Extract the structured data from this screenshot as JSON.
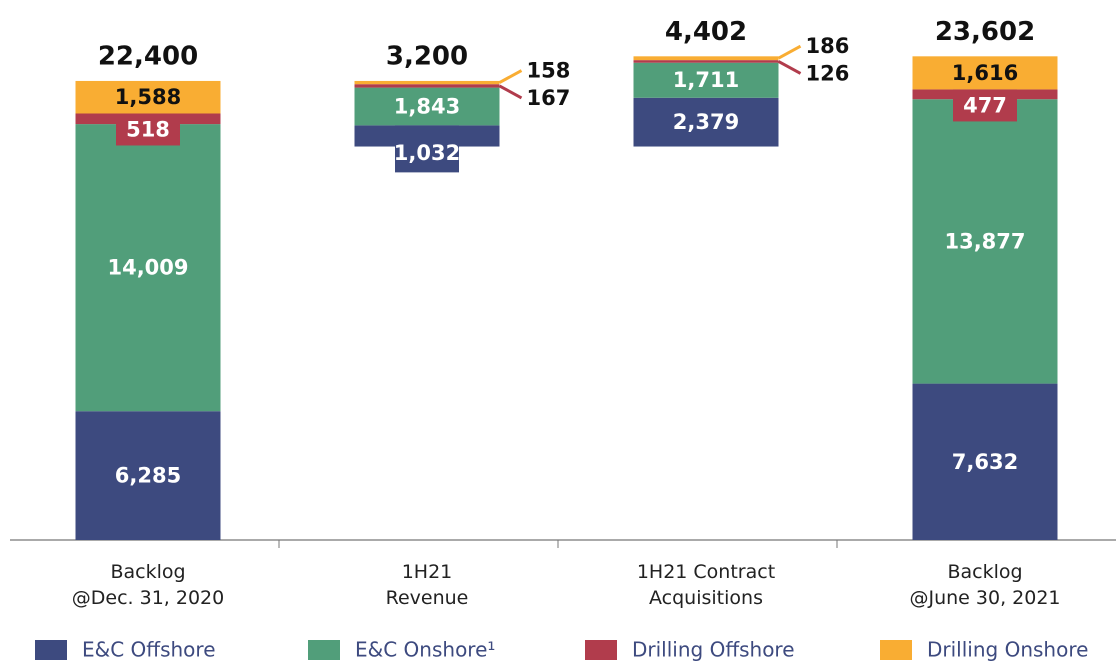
{
  "chart_data": {
    "type": "waterfall",
    "categories": [
      [
        "Backlog",
        "@Dec. 31, 2020"
      ],
      [
        "1H21",
        "Revenue"
      ],
      [
        "1H21 Contract",
        "Acquisitions"
      ],
      [
        "Backlog",
        "@June 30, 2021"
      ]
    ],
    "measures": [
      "absolute",
      "decrease",
      "increase",
      "absolute"
    ],
    "totals": [
      22400,
      3200,
      4402,
      23602
    ],
    "totals_labels": [
      "22,400",
      "3,200",
      "4,402",
      "23,602"
    ],
    "series": [
      {
        "name": "E&C Offshore",
        "color": "#3d4a7f",
        "values": [
          6285,
          1032,
          2379,
          7632
        ],
        "value_labels": [
          "6,285",
          "1,032",
          "2,379",
          "7,632"
        ]
      },
      {
        "name": "E&C Onshore¹",
        "color": "#519e7a",
        "values": [
          14009,
          1843,
          1711,
          13877
        ],
        "value_labels": [
          "14,009",
          "1,843",
          "1,711",
          "13,877"
        ]
      },
      {
        "name": "Drilling Offshore",
        "color": "#b13c4c",
        "values": [
          518,
          167,
          126,
          477
        ]
      },
      {
        "name": "Drilling Onshore",
        "color": "#f9ad33",
        "values": [
          1588,
          158,
          186,
          1616
        ],
        "value_labels": [
          "1,588",
          "158",
          "186",
          "1,616"
        ]
      }
    ],
    "ylim": [
      0,
      26350
    ]
  }
}
